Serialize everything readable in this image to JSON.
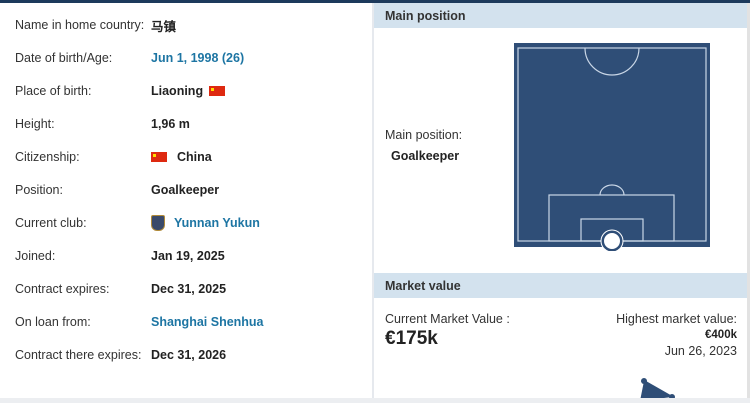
{
  "player_info": [
    {
      "label": "Name in home country:",
      "value": "马镇"
    },
    {
      "label": "Date of birth/Age:",
      "value": "Jun 1, 1998 (26)",
      "link": true
    },
    {
      "label": "Place of birth:",
      "value": "Liaoning",
      "flag_after": "china-flag-icon"
    },
    {
      "label": "Height:",
      "value": "1,96 m"
    },
    {
      "label": "Citizenship:",
      "value": "China",
      "flag_before": "china-flag-icon"
    },
    {
      "label": "Position:",
      "value": "Goalkeeper"
    },
    {
      "label": "Current club:",
      "value": "Yunnan Yukun",
      "link": true,
      "icon": "club-crest-icon"
    },
    {
      "label": "Joined:",
      "value": "Jan 19, 2025"
    },
    {
      "label": "Contract expires:",
      "value": "Dec 31, 2025"
    },
    {
      "label": "On loan from:",
      "value": "Shanghai Shenhua",
      "link": true
    },
    {
      "label": "Contract there expires:",
      "value": "Dec 31, 2026"
    }
  ],
  "main_position": {
    "header": "Main position",
    "label": "Main position:",
    "value": "Goalkeeper"
  },
  "market_value": {
    "header": "Market value",
    "current_label": "Current Market Value :",
    "current_value": "€175k",
    "highest_label": "Highest market value:",
    "highest_value": "€400k",
    "highest_date": "Jun 26, 2023"
  },
  "colors": {
    "link": "#1d75a3",
    "pitch": "#2f4e77",
    "header_bg": "#d3e2ee"
  }
}
